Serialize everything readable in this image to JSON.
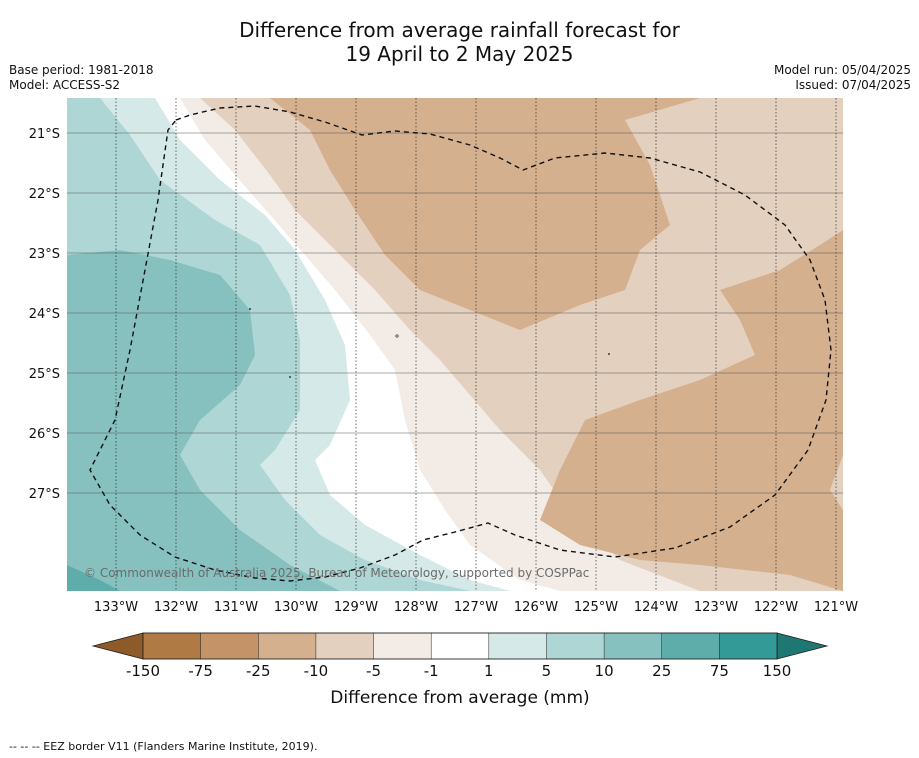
{
  "title_line1": "Difference from average rainfall forecast for",
  "title_line2": "19 April to 2 May 2025",
  "base_period": "Base period: 1981-2018",
  "model": "Model: ACCESS-S2",
  "model_run": "Model run: 05/04/2025",
  "issued": "Issued: 07/04/2025",
  "copyright": "© Commonwealth of Australia 2025, Bureau of Meteorology, supported by COSPPac",
  "lat_labels": [
    "21°S",
    "22°S",
    "23°S",
    "24°S",
    "25°S",
    "26°S",
    "27°S"
  ],
  "lon_labels": [
    "133°W",
    "132°W",
    "131°W",
    "130°W",
    "129°W",
    "128°W",
    "127°W",
    "126°W",
    "125°W",
    "124°W",
    "123°W",
    "122°W",
    "121°W"
  ],
  "colorbar": {
    "label": "Difference from average (mm)",
    "ticks": [
      "-150",
      "-75",
      "-25",
      "-10",
      "-5",
      "-1",
      "1",
      "5",
      "10",
      "25",
      "75",
      "150"
    ],
    "colors": [
      "#8f5a2a",
      "#b07a44",
      "#c49468",
      "#d4b08e",
      "#e3d0be",
      "#f3ece6",
      "#ffffff",
      "#d4e9e8",
      "#aed6d5",
      "#86c1c0",
      "#5fadab",
      "#339a97",
      "#1f7773"
    ]
  },
  "eez_note": "--  --  -- EEZ border V11 (Flanders Marine Institute, 2019)."
}
